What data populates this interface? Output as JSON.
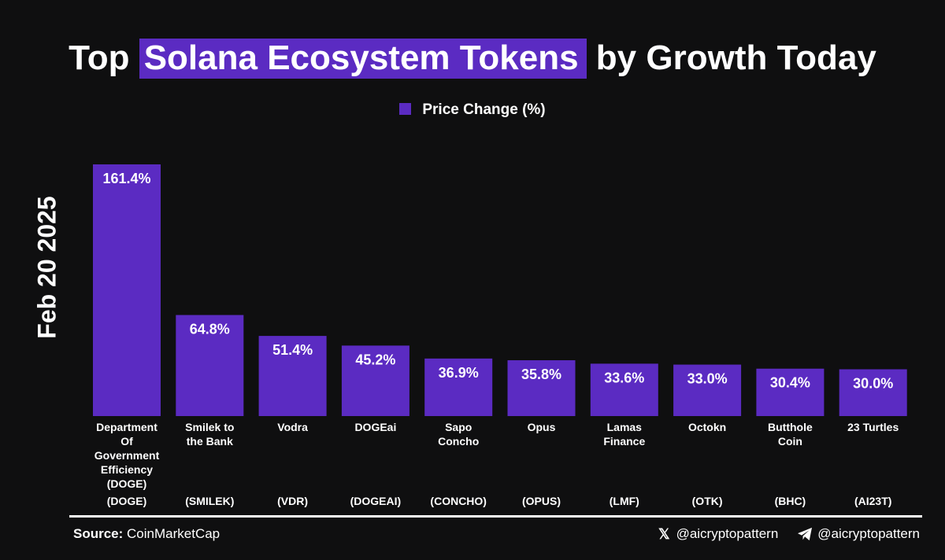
{
  "title": {
    "prefix": "Top",
    "highlight": "Solana Ecosystem Tokens",
    "suffix": "by Growth Today"
  },
  "side_label": "Feb 20 2025",
  "footer": {
    "source_label": "Source:",
    "source_value": "CoinMarketCap",
    "x_handle": "@aicryptopattern",
    "telegram_handle": "@aicryptopattern"
  },
  "colors": {
    "background": "#0f0f10",
    "bar": "#5b2bc2",
    "text": "#ffffff"
  },
  "icons": {
    "x": "x-logo-icon",
    "telegram": "telegram-icon"
  },
  "chart_data": {
    "type": "bar",
    "legend": "Price Change (%)",
    "legend_position": "top-center",
    "grid": false,
    "ylim": [
      0,
      161.4
    ],
    "categories": [
      "Department Of Government Efficiency (DOGE)",
      "Smilek to the Bank",
      "Vodra",
      "DOGEai",
      "Sapo Concho",
      "Opus",
      "Lamas Finance",
      "Octokn",
      "Butthole Coin",
      "23 Turtles"
    ],
    "category_lines": [
      [
        "Department",
        "Of",
        "Government",
        "Efficiency",
        "(DOGE)"
      ],
      [
        "Smilek to",
        "the Bank"
      ],
      [
        "Vodra"
      ],
      [
        "DOGEai"
      ],
      [
        "Sapo",
        "Concho"
      ],
      [
        "Opus"
      ],
      [
        "Lamas",
        "Finance"
      ],
      [
        "Octokn"
      ],
      [
        "Butthole",
        "Coin"
      ],
      [
        "23 Turtles"
      ]
    ],
    "tickers": [
      "(DOGE)",
      "(SMILEK)",
      "(VDR)",
      "(DOGEAI)",
      "(CONCHO)",
      "(OPUS)",
      "(LMF)",
      "(OTK)",
      "(BHC)",
      "(AI23T)"
    ],
    "series": [
      {
        "name": "Price Change (%)",
        "values": [
          161.4,
          64.8,
          51.4,
          45.2,
          36.9,
          35.8,
          33.6,
          33.0,
          30.4,
          30.0
        ],
        "labels": [
          "161.4%",
          "64.8%",
          "51.4%",
          "45.2%",
          "36.9%",
          "35.8%",
          "33.6%",
          "33.0%",
          "30.4%",
          "30.0%"
        ]
      }
    ]
  }
}
